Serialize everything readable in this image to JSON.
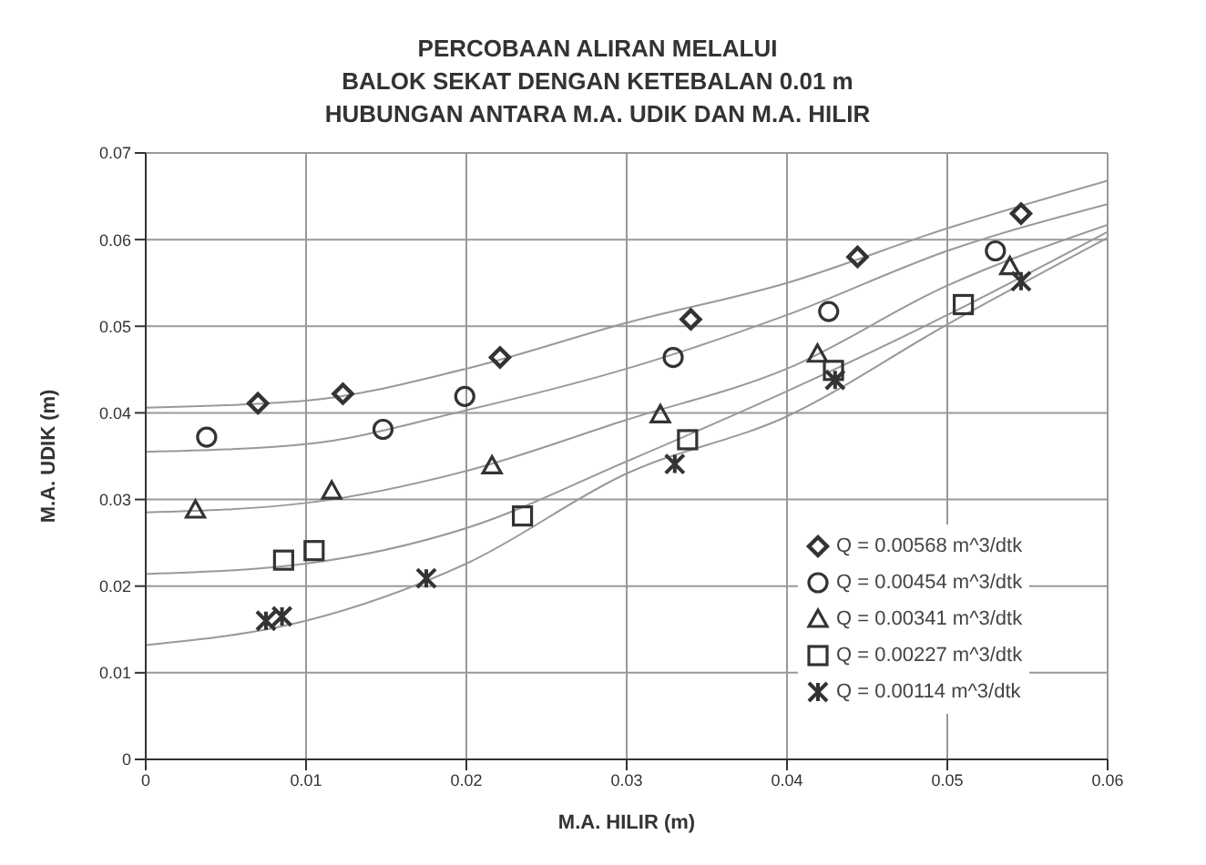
{
  "chart_data": {
    "type": "scatter",
    "title": "PERCOBAAN ALIRAN MELALUI\nBALOK SEKAT DENGAN KETEBALAN 0.01 m\nHUBUNGAN ANTARA M.A. UDIK DAN M.A. HILIR",
    "xlabel": "M.A. HILIR (m)",
    "ylabel": "M.A. UDIK (m)",
    "xlim": [
      0,
      0.06
    ],
    "xticks": [
      0,
      0.01,
      0.02,
      0.03,
      0.04,
      0.05,
      0.06
    ],
    "ylim": [
      0,
      0.07
    ],
    "yticks": [
      0,
      0.01,
      0.02,
      0.03,
      0.04,
      0.05,
      0.06,
      0.07
    ],
    "grid": true,
    "legend": "bottom right",
    "series": [
      {
        "name": "Q = 0.00568 m^3/dtk",
        "color": "#333333",
        "marker": "diamond",
        "x": [
          0.007,
          0.0123,
          0.0221,
          0.034,
          0.0444,
          0.0546
        ],
        "values": [
          0.0411,
          0.0422,
          0.0464,
          0.0508,
          0.058,
          0.063
        ]
      },
      {
        "name": "Q = 0.00454 m^3/dtk",
        "color": "#333333",
        "marker": "circle",
        "x": [
          0.0038,
          0.0148,
          0.0199,
          0.0329,
          0.0426,
          0.053
        ],
        "values": [
          0.0372,
          0.0381,
          0.0419,
          0.0464,
          0.0517,
          0.0587
        ]
      },
      {
        "name": "Q = 0.00341 m^3/dtk",
        "color": "#333333",
        "marker": "triangle",
        "x": [
          0.0031,
          0.0116,
          0.0216,
          0.0321,
          0.0419,
          0.0539
        ],
        "values": [
          0.0288,
          0.031,
          0.0339,
          0.0398,
          0.0468,
          0.0569
        ]
      },
      {
        "name": "Q = 0.00227 m^3/dtk",
        "color": "#333333",
        "marker": "square",
        "x": [
          0.0086,
          0.0105,
          0.0235,
          0.0338,
          0.0429,
          0.051
        ],
        "values": [
          0.023,
          0.0241,
          0.0281,
          0.0369,
          0.0449,
          0.0525
        ]
      },
      {
        "name": "Q = 0.00114 m^3/dtk",
        "color": "#333333",
        "marker": "cross",
        "x": [
          0.0075,
          0.0085,
          0.0175,
          0.033,
          0.043,
          0.0546
        ],
        "values": [
          0.016,
          0.0165,
          0.0209,
          0.0341,
          0.0438,
          0.0552
        ]
      },
      {
        "type": "line",
        "color": "#999999",
        "x": [
          0,
          0.01,
          0.02,
          0.03,
          0.04,
          0.05,
          0.06
        ],
        "values": [
          0.0406,
          0.0414,
          0.0451,
          0.0504,
          0.055,
          0.0613,
          0.0668
        ]
      },
      {
        "type": "line",
        "color": "#999999",
        "x": [
          0,
          0.01,
          0.02,
          0.03,
          0.04,
          0.05,
          0.06
        ],
        "values": [
          0.0355,
          0.0364,
          0.0403,
          0.0451,
          0.0513,
          0.0587,
          0.0641
        ]
      },
      {
        "type": "line",
        "color": "#999999",
        "x": [
          0,
          0.01,
          0.02,
          0.03,
          0.04,
          0.05,
          0.06
        ],
        "values": [
          0.0285,
          0.0296,
          0.0333,
          0.0392,
          0.0451,
          0.0547,
          0.0617
        ]
      },
      {
        "type": "line",
        "color": "#999999",
        "x": [
          0,
          0.01,
          0.02,
          0.03,
          0.04,
          0.05,
          0.06
        ],
        "values": [
          0.0214,
          0.0226,
          0.0267,
          0.0344,
          0.0425,
          0.0513,
          0.0609
        ]
      },
      {
        "type": "line",
        "color": "#999999",
        "x": [
          0,
          0.01,
          0.02,
          0.03,
          0.04,
          0.05,
          0.06
        ],
        "values": [
          0.0132,
          0.016,
          0.0226,
          0.033,
          0.0396,
          0.0502,
          0.0602
        ]
      }
    ]
  }
}
